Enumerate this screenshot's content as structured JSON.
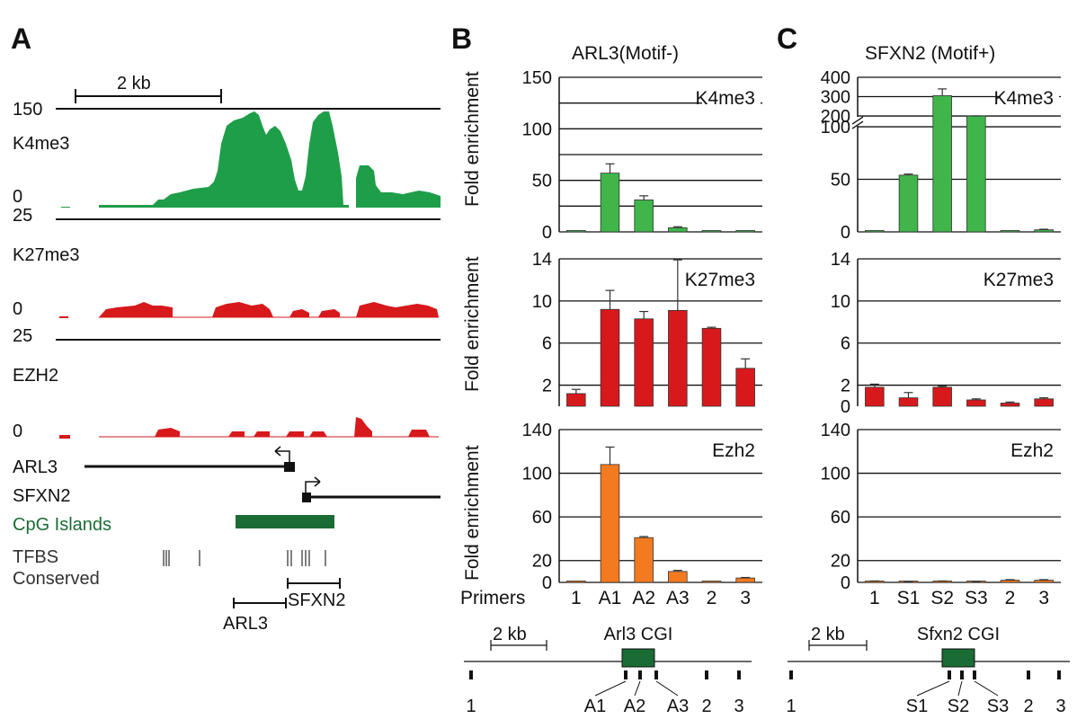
{
  "panels": {
    "a": "A",
    "b": "B",
    "c": "C"
  },
  "panel_a": {
    "scale_bar": "2 kb",
    "tracks": [
      {
        "name": "K4me3",
        "max": "150",
        "min": "0"
      },
      {
        "name": "K27me3",
        "max": "25",
        "min": "0"
      },
      {
        "name": "EZH2",
        "max": "25",
        "min": "0"
      }
    ],
    "genes": [
      {
        "name": "ARL3"
      },
      {
        "name": "SFXN2"
      }
    ],
    "cpg_label": "CpG Islands",
    "tfbs_label": "TFBS",
    "conserved_label": "Conserved",
    "amplicon_labels": [
      "ARL3",
      "SFXN2"
    ],
    "colors": {
      "k4me3": "#1f9e4a",
      "repressive": "#d7191c",
      "cpg": "#1b6b35"
    }
  },
  "chart_data": [
    {
      "type": "bar",
      "panel": "B",
      "title": "ARL3(Motif-)",
      "ylabel": "Fold enrichment",
      "xlabel": "Primers",
      "categories": [
        "1",
        "A1",
        "A2",
        "A3",
        "2",
        "3"
      ],
      "subplots": [
        {
          "mark": "K4me3",
          "ylim": [
            0,
            150
          ],
          "yticks": [
            "0",
            "50",
            "100",
            "150"
          ],
          "gridlines": [
            0,
            25,
            50,
            75,
            100,
            125,
            150
          ],
          "color": "#3fb54a",
          "values": [
            0.5,
            57,
            31,
            4,
            0.5,
            0.5
          ],
          "errors": [
            0,
            9,
            4,
            1,
            0,
            0
          ]
        },
        {
          "mark": "K27me3",
          "ylim": [
            0,
            14
          ],
          "yticks": [
            "2",
            "6",
            "10",
            "14"
          ],
          "gridlines": [
            2,
            6,
            10,
            14
          ],
          "color": "#d7191c",
          "values": [
            1.2,
            9.2,
            8.3,
            9.1,
            7.4,
            3.6
          ],
          "errors": [
            0.4,
            1.8,
            0.7,
            4.8,
            0.1,
            0.9
          ]
        },
        {
          "mark": "Ezh2",
          "ylim": [
            0,
            140
          ],
          "yticks": [
            "0",
            "20",
            "60",
            "100",
            "140"
          ],
          "gridlines": [
            0,
            20,
            60,
            100,
            140
          ],
          "color": "#f47a20",
          "values": [
            0.5,
            108,
            41,
            10,
            1,
            4
          ],
          "errors": [
            0,
            16,
            1,
            1,
            0,
            0.5
          ]
        }
      ],
      "locus": {
        "scale_bar": "2 kb",
        "cgi_label": "Arl3 CGI",
        "primers": [
          "1",
          "A1",
          "A2",
          "A3",
          "2",
          "3"
        ]
      }
    },
    {
      "type": "bar",
      "panel": "C",
      "title": "SFXN2 (Motif+)",
      "categories": [
        "1",
        "S1",
        "S2",
        "S3",
        "2",
        "3"
      ],
      "subplots": [
        {
          "mark": "K4me3",
          "ylim": [
            0,
            400
          ],
          "axis_break": [
            100,
            200
          ],
          "yticks": [
            "0",
            "50",
            "100",
            "200",
            "300",
            "400"
          ],
          "gridlines": [
            0,
            50,
            100,
            200,
            300,
            400
          ],
          "color": "#3fb54a",
          "values": [
            0.5,
            54,
            305,
            170,
            1,
            2
          ],
          "errors": [
            0,
            1,
            35,
            10,
            0,
            0.5
          ]
        },
        {
          "mark": "K27me3",
          "ylim": [
            0,
            14
          ],
          "yticks": [
            "0",
            "2",
            "6",
            "10",
            "14"
          ],
          "gridlines": [
            2,
            6,
            10,
            14
          ],
          "color": "#d7191c",
          "values": [
            1.8,
            0.8,
            1.8,
            0.6,
            0.3,
            0.7
          ],
          "errors": [
            0.3,
            0.5,
            0.1,
            0.1,
            0.1,
            0.1
          ]
        },
        {
          "mark": "Ezh2",
          "ylim": [
            0,
            140
          ],
          "yticks": [
            "0",
            "20",
            "60",
            "100",
            "140"
          ],
          "gridlines": [
            0,
            20,
            60,
            100,
            140
          ],
          "color": "#f47a20",
          "values": [
            1,
            0.5,
            1,
            0.5,
            2,
            2
          ],
          "errors": [
            0.3,
            0.2,
            0.3,
            0.2,
            0.5,
            0.5
          ]
        }
      ],
      "locus": {
        "scale_bar": "2 kb",
        "cgi_label": "Sfxn2 CGI",
        "primers": [
          "1",
          "S1",
          "S2",
          "S3",
          "2",
          "3"
        ]
      }
    }
  ]
}
